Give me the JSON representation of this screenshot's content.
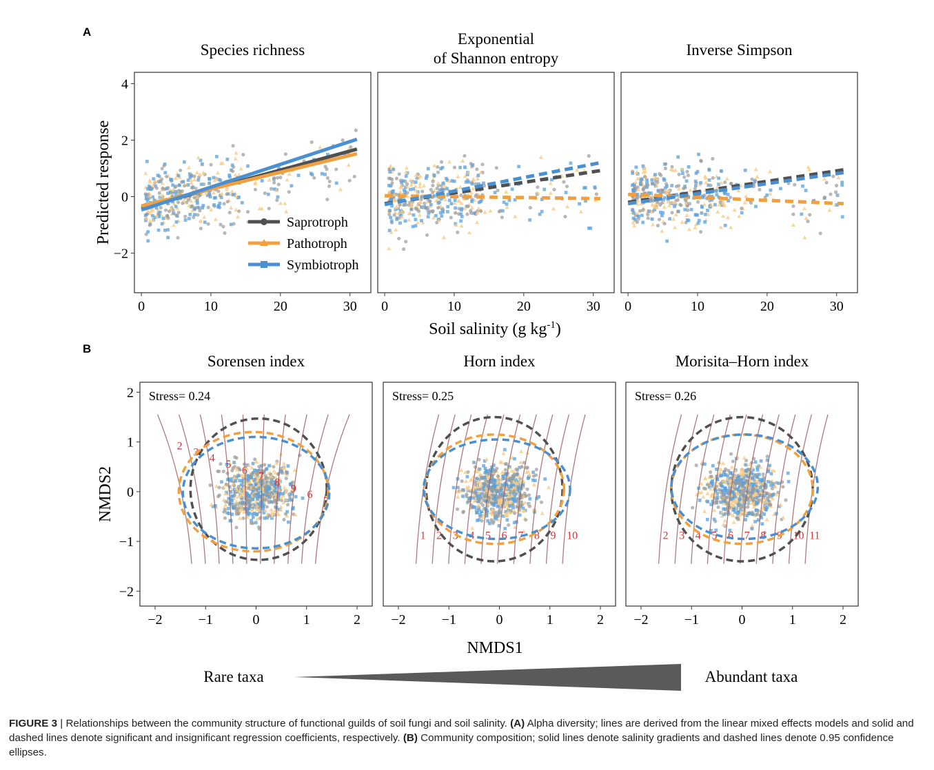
{
  "colors": {
    "saprotroph": "#505050",
    "pathotroph": "#f0a040",
    "symbiotroph": "#4a8fd0",
    "saprotroph_point": "#9a9a9a",
    "pathotroph_point": "#f8cc86",
    "symbiotroph_point": "#5aa0dc",
    "contour_line": "#a06060",
    "contour_label": "#e03030",
    "panel_border": "#333333"
  },
  "panel_labels": {
    "a": "A",
    "b": "B"
  },
  "shared": {
    "x_title_a": "Soil salinity (g kg",
    "x_title_a_sup": "-1",
    "x_title_a_close": ")",
    "x_title_b": "NMDS1",
    "gradient_left": "Rare taxa",
    "gradient_right": "Abundant taxa"
  },
  "caption": {
    "figure_label": "FIGURE 3",
    "separator": " | ",
    "intro": "Relationships between the community structure of functional guilds of soil fungi and soil salinity. ",
    "a_label": "(A)",
    "a_text": " Alpha diversity; lines are derived from the linear mixed effects models and solid and dashed lines denote significant and insignificant regression coefficients, respectively. ",
    "b_label": "(B)",
    "b_text": " Community composition; solid lines denote salinity gradients and dashed lines denote 0.95 confidence ellipses."
  },
  "chart_data": [
    {
      "type": "scatter",
      "panel": "A",
      "title": "Species richness",
      "xlabel": "Soil salinity (g kg-1)",
      "ylabel": "Predicted response",
      "xlim": [
        -1,
        33
      ],
      "ylim": [
        -3.4,
        4.4
      ],
      "xticks": [
        "0",
        "10",
        "20",
        "30"
      ],
      "yticks": [
        "−2",
        "0",
        "2",
        "4"
      ],
      "legend": {
        "position": "bottom-right",
        "entries": [
          "Saprotroph",
          "Pathotroph",
          "Symbiotroph"
        ]
      },
      "series": [
        {
          "name": "Saprotroph",
          "line": {
            "style": "solid",
            "x": [
              0,
              31
            ],
            "y": [
              -0.4,
              1.68
            ]
          }
        },
        {
          "name": "Pathotroph",
          "line": {
            "style": "solid",
            "x": [
              0,
              31
            ],
            "y": [
              -0.33,
              1.52
            ]
          }
        },
        {
          "name": "Symbiotroph",
          "line": {
            "style": "solid",
            "x": [
              0,
              31
            ],
            "y": [
              -0.47,
              2.03
            ]
          }
        }
      ]
    },
    {
      "type": "scatter",
      "panel": "A",
      "title": "Exponential of Shannon entropy",
      "xlim": [
        -1,
        33
      ],
      "ylim": [
        -3.4,
        4.4
      ],
      "xticks": [
        "0",
        "10",
        "20",
        "30"
      ],
      "series": [
        {
          "name": "Saprotroph",
          "line": {
            "style": "dashed",
            "x": [
              0,
              31
            ],
            "y": [
              -0.25,
              0.92
            ]
          }
        },
        {
          "name": "Pathotroph",
          "line": {
            "style": "dashed",
            "x": [
              0,
              31
            ],
            "y": [
              0.03,
              -0.07
            ]
          }
        },
        {
          "name": "Symbiotroph",
          "line": {
            "style": "dashed",
            "x": [
              0,
              31
            ],
            "y": [
              -0.28,
              1.2
            ]
          }
        }
      ]
    },
    {
      "type": "scatter",
      "panel": "A",
      "title": "Inverse Simpson",
      "xlim": [
        -1,
        33
      ],
      "ylim": [
        -3.4,
        4.4
      ],
      "xticks": [
        "0",
        "10",
        "20",
        "30"
      ],
      "series": [
        {
          "name": "Saprotroph",
          "line": {
            "style": "dashed",
            "x": [
              0,
              31
            ],
            "y": [
              -0.2,
              0.95
            ]
          }
        },
        {
          "name": "Pathotroph",
          "line": {
            "style": "dashed",
            "x": [
              0,
              31
            ],
            "y": [
              0.08,
              -0.25
            ]
          }
        },
        {
          "name": "Symbiotroph",
          "line": {
            "style": "dashed",
            "x": [
              0,
              31
            ],
            "y": [
              -0.25,
              0.85
            ]
          }
        }
      ]
    },
    {
      "type": "scatter",
      "panel": "B",
      "title": "Sorensen index",
      "annotation": "Stress= 0.24",
      "xlabel": "NMDS1",
      "ylabel": "NMDS2",
      "xlim": [
        -2.3,
        2.3
      ],
      "ylim": [
        -2.3,
        2.2
      ],
      "xticks": [
        "−2",
        "−1",
        "0",
        "1",
        "2"
      ],
      "yticks": [
        "−2",
        "−1",
        "0",
        "1",
        "2"
      ],
      "ellipses": [
        {
          "name": "Saprotroph",
          "cx": 0.05,
          "cy": 0.05,
          "rx": 1.35,
          "ry": 1.42
        },
        {
          "name": "Pathotroph",
          "cx": -0.05,
          "cy": 0.0,
          "rx": 1.48,
          "ry": 1.2
        },
        {
          "name": "Symbiotroph",
          "cx": 0.0,
          "cy": -0.02,
          "rx": 1.45,
          "ry": 1.12
        }
      ],
      "contour_labels": [
        "2",
        "3",
        "4",
        "5",
        "6",
        "7",
        "8",
        "9",
        "6",
        "7"
      ]
    },
    {
      "type": "scatter",
      "panel": "B",
      "title": "Horn index",
      "annotation": "Stress= 0.25",
      "xlim": [
        -2.3,
        2.3
      ],
      "ylim": [
        -2.3,
        2.2
      ],
      "xticks": [
        "−2",
        "−1",
        "0",
        "1",
        "2"
      ],
      "ellipses": [
        {
          "name": "Saprotroph",
          "cx": -0.1,
          "cy": 0.05,
          "rx": 1.35,
          "ry": 1.45
        },
        {
          "name": "Pathotroph",
          "cx": -0.1,
          "cy": 0.05,
          "rx": 1.38,
          "ry": 1.1
        },
        {
          "name": "Symbiotroph",
          "cx": -0.05,
          "cy": 0.05,
          "rx": 1.45,
          "ry": 1.0
        }
      ],
      "contour_labels": [
        "1",
        "2",
        "3",
        "4",
        "5",
        "6",
        "7",
        "8",
        "9",
        "10"
      ]
    },
    {
      "type": "scatter",
      "panel": "B",
      "title": "Morisita–Horn index",
      "annotation": "Stress= 0.26",
      "xlim": [
        -2.3,
        2.3
      ],
      "ylim": [
        -2.3,
        2.2
      ],
      "xticks": [
        "−2",
        "−1",
        "0",
        "1",
        "2"
      ],
      "ellipses": [
        {
          "name": "Saprotroph",
          "cx": 0.0,
          "cy": 0.05,
          "rx": 1.4,
          "ry": 1.45
        },
        {
          "name": "Pathotroph",
          "cx": 0.0,
          "cy": 0.05,
          "rx": 1.4,
          "ry": 1.1
        },
        {
          "name": "Symbiotroph",
          "cx": 0.05,
          "cy": 0.1,
          "rx": 1.45,
          "ry": 1.05
        }
      ],
      "contour_labels": [
        "2",
        "3",
        "4",
        "5",
        "6",
        "7",
        "8",
        "9",
        "10",
        "11"
      ]
    }
  ]
}
